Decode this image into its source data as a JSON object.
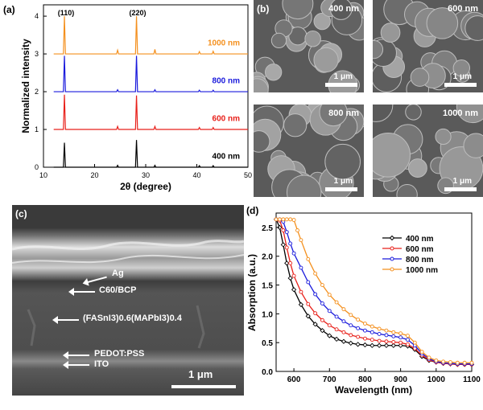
{
  "panel_a": {
    "tag": "(a)",
    "peak_110": "(110)",
    "peak_220": "(220)",
    "xlabel": "2θ (degree)",
    "ylabel": "Normalized intensity"
  },
  "panel_b": {
    "tag": "(b)",
    "images": [
      {
        "label": "400 nm",
        "scale": "1 μm"
      },
      {
        "label": "600 nm",
        "scale": "1 μm"
      },
      {
        "label": "800 nm",
        "scale": "1 μm"
      },
      {
        "label": "1000 nm",
        "scale": "1 μm"
      }
    ]
  },
  "panel_c": {
    "tag": "(c)",
    "layers": {
      "ag": "Ag",
      "c60_bcp": "C60/BCP",
      "perovskite": "(FASnI3)0.6(MAPbI3)0.4",
      "pedot": "PEDOT:PSS",
      "ito": "ITO"
    },
    "scale": "1 μm"
  },
  "panel_d": {
    "tag": "(d)"
  },
  "chart_data": [
    {
      "type": "line",
      "xlabel": "2θ (degree)",
      "ylabel": "Normalized intensity",
      "xlim": [
        10,
        50
      ],
      "ylim": [
        0,
        4.3
      ],
      "xticks": [
        10,
        20,
        30,
        40,
        50
      ],
      "yticks": [
        0,
        1,
        2,
        3,
        4
      ],
      "annotations": [
        "(110)",
        "(220)"
      ],
      "series": [
        {
          "name": "400 nm",
          "color": "#000000",
          "offset": 0,
          "peaks": [
            [
              14.1,
              0.65
            ],
            [
              24.5,
              0.05
            ],
            [
              28.2,
              0.72
            ],
            [
              31.8,
              0.05
            ],
            [
              40.5,
              0.04
            ],
            [
              43.2,
              0.04
            ]
          ]
        },
        {
          "name": "600 nm",
          "color": "#e8201a",
          "offset": 1,
          "peaks": [
            [
              14.1,
              0.92
            ],
            [
              24.5,
              0.08
            ],
            [
              28.2,
              0.9
            ],
            [
              31.8,
              0.08
            ],
            [
              40.5,
              0.05
            ],
            [
              43.2,
              0.05
            ]
          ]
        },
        {
          "name": "800 nm",
          "color": "#1a1adc",
          "offset": 2,
          "peaks": [
            [
              14.1,
              0.95
            ],
            [
              24.5,
              0.05
            ],
            [
              28.2,
              0.95
            ],
            [
              31.8,
              0.05
            ],
            [
              40.5,
              0.04
            ],
            [
              43.2,
              0.04
            ]
          ]
        },
        {
          "name": "1000 nm",
          "color": "#f4901e",
          "offset": 3,
          "peaks": [
            [
              14.1,
              1.0
            ],
            [
              24.5,
              0.1
            ],
            [
              28.2,
              1.0
            ],
            [
              31.8,
              0.12
            ],
            [
              40.5,
              0.06
            ],
            [
              43.2,
              0.07
            ]
          ]
        }
      ]
    },
    {
      "type": "line",
      "xlabel": "Wavelength (nm)",
      "ylabel": "Absorption (a.u.)",
      "xlim": [
        550,
        1100
      ],
      "ylim": [
        0,
        2.75
      ],
      "xticks": [
        600,
        700,
        800,
        900,
        1000,
        1100
      ],
      "yticks": [
        0.0,
        0.5,
        1.0,
        1.5,
        2.0,
        2.5
      ],
      "legend": "top-right",
      "series": [
        {
          "name": "400 nm",
          "color": "#000000",
          "marker": "diamond",
          "x": [
            550,
            560,
            570,
            580,
            590,
            600,
            620,
            640,
            660,
            680,
            700,
            720,
            740,
            760,
            780,
            800,
            820,
            840,
            860,
            880,
            900,
            920,
            940,
            960,
            980,
            1000,
            1020,
            1040,
            1060,
            1080,
            1100
          ],
          "y": [
            2.64,
            2.5,
            2.2,
            1.88,
            1.62,
            1.42,
            1.16,
            0.96,
            0.82,
            0.71,
            0.62,
            0.56,
            0.52,
            0.49,
            0.47,
            0.46,
            0.45,
            0.45,
            0.45,
            0.45,
            0.45,
            0.44,
            0.38,
            0.26,
            0.19,
            0.16,
            0.14,
            0.13,
            0.12,
            0.12,
            0.12
          ]
        },
        {
          "name": "600 nm",
          "color": "#e8201a",
          "marker": "circle",
          "x": [
            550,
            560,
            570,
            580,
            590,
            600,
            620,
            640,
            660,
            680,
            700,
            720,
            740,
            760,
            780,
            800,
            820,
            840,
            860,
            880,
            900,
            920,
            940,
            960,
            980,
            1000,
            1020,
            1040,
            1060,
            1080,
            1100
          ],
          "y": [
            2.64,
            2.62,
            2.45,
            2.15,
            1.88,
            1.66,
            1.38,
            1.17,
            1.01,
            0.89,
            0.8,
            0.73,
            0.68,
            0.63,
            0.6,
            0.57,
            0.55,
            0.53,
            0.52,
            0.51,
            0.5,
            0.47,
            0.4,
            0.28,
            0.2,
            0.16,
            0.14,
            0.13,
            0.12,
            0.12,
            0.12
          ]
        },
        {
          "name": "800 nm",
          "color": "#1a1adc",
          "marker": "circle",
          "x": [
            550,
            560,
            570,
            580,
            590,
            600,
            620,
            640,
            660,
            680,
            700,
            720,
            740,
            760,
            780,
            800,
            820,
            840,
            860,
            880,
            900,
            920,
            940,
            960,
            980,
            1000,
            1020,
            1040,
            1060,
            1080,
            1100
          ],
          "y": [
            2.64,
            2.64,
            2.6,
            2.42,
            2.22,
            2.05,
            1.8,
            1.55,
            1.34,
            1.18,
            1.05,
            0.95,
            0.87,
            0.8,
            0.75,
            0.71,
            0.68,
            0.65,
            0.63,
            0.61,
            0.59,
            0.55,
            0.45,
            0.31,
            0.22,
            0.17,
            0.15,
            0.14,
            0.13,
            0.13,
            0.13
          ]
        },
        {
          "name": "1000 nm",
          "color": "#f4901e",
          "marker": "circle",
          "x": [
            550,
            560,
            570,
            580,
            590,
            600,
            610,
            620,
            640,
            660,
            680,
            700,
            720,
            740,
            760,
            780,
            800,
            820,
            840,
            860,
            880,
            900,
            920,
            940,
            960,
            980,
            1000,
            1020,
            1040,
            1060,
            1080,
            1100
          ],
          "y": [
            2.64,
            2.64,
            2.64,
            2.64,
            2.64,
            2.63,
            2.45,
            2.28,
            1.95,
            1.7,
            1.5,
            1.33,
            1.2,
            1.08,
            0.98,
            0.9,
            0.83,
            0.78,
            0.74,
            0.71,
            0.68,
            0.66,
            0.62,
            0.5,
            0.34,
            0.24,
            0.19,
            0.17,
            0.16,
            0.15,
            0.15,
            0.15
          ]
        }
      ]
    }
  ]
}
